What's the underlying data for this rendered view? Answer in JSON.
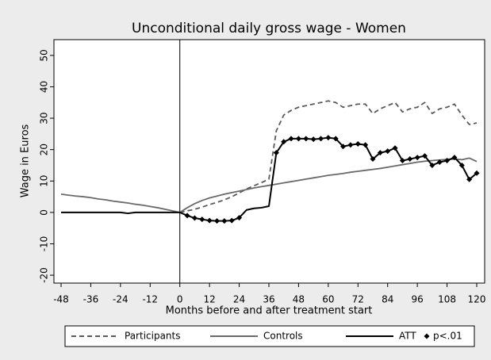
{
  "chart_data": {
    "type": "line",
    "title": "Unconditional daily gross wage - Women",
    "x_label": "Months before and after treatment start",
    "y_label": "Wage in Euros",
    "x": [
      -48,
      -45,
      -42,
      -39,
      -36,
      -33,
      -30,
      -27,
      -24,
      -21,
      -18,
      -15,
      -12,
      -9,
      -6,
      -3,
      0,
      3,
      6,
      9,
      12,
      15,
      18,
      21,
      24,
      27,
      30,
      33,
      36,
      39,
      42,
      45,
      48,
      51,
      54,
      57,
      60,
      63,
      66,
      69,
      72,
      75,
      78,
      81,
      84,
      87,
      90,
      93,
      96,
      99,
      102,
      105,
      108,
      111,
      114,
      117,
      120
    ],
    "xlim": [
      -48,
      120
    ],
    "xticks": [
      -48,
      -36,
      -24,
      -12,
      0,
      12,
      24,
      36,
      48,
      60,
      72,
      84,
      96,
      108,
      120
    ],
    "ylim": [
      -22,
      53
    ],
    "yticks": [
      -20,
      -10,
      0,
      10,
      20,
      30,
      40,
      50
    ],
    "vline": 0,
    "series": [
      {
        "name": "Participants",
        "color": "#5a5a5a",
        "dash": true,
        "values": [
          null,
          null,
          null,
          null,
          null,
          null,
          null,
          null,
          null,
          null,
          null,
          null,
          null,
          null,
          null,
          null,
          0,
          0.5,
          1.0,
          1.7,
          2.5,
          3.2,
          4.0,
          5.0,
          6.2,
          7.5,
          8.5,
          9.5,
          10.6,
          26,
          31,
          32.5,
          33.5,
          34,
          34.5,
          35,
          35.5,
          35,
          33.5,
          34,
          34.5,
          34.5,
          31.5,
          33,
          34,
          35,
          32,
          33,
          33.5,
          35,
          31.5,
          33,
          33.5,
          34.5,
          31,
          28,
          28.5
        ]
      },
      {
        "name": "Controls",
        "color": "#6a6a6a",
        "values": [
          5.8,
          5.5,
          5.2,
          5.0,
          4.7,
          4.3,
          4.0,
          3.6,
          3.3,
          3.0,
          2.6,
          2.3,
          1.9,
          1.5,
          1.0,
          0.5,
          0,
          1.5,
          2.8,
          3.8,
          4.6,
          5.2,
          5.8,
          6.3,
          6.8,
          7.3,
          7.8,
          8.2,
          8.6,
          9.0,
          9.4,
          9.8,
          10.2,
          10.6,
          11.0,
          11.4,
          11.8,
          12.1,
          12.4,
          12.8,
          13.1,
          13.4,
          13.7,
          14.0,
          14.4,
          14.8,
          15.2,
          15.6,
          16.0,
          16.3,
          16.5,
          16.7,
          16.9,
          17.0,
          16.8,
          17.3,
          16.2
        ]
      },
      {
        "name": "ATT",
        "color": "#000000",
        "values": [
          0,
          0,
          0,
          0,
          0,
          0,
          0,
          0,
          0,
          -0.3,
          0,
          0,
          0,
          0,
          0,
          0,
          0,
          -1,
          -1.8,
          -2.2,
          -2.6,
          -2.7,
          -2.7,
          -2.6,
          -1.7,
          0.8,
          1.3,
          1.5,
          2.0,
          19,
          22.5,
          23.5,
          23.5,
          23.5,
          23.3,
          23.5,
          23.8,
          23.5,
          21,
          21.5,
          21.8,
          21.5,
          17,
          19,
          19.5,
          20.5,
          16.5,
          17,
          17.5,
          18,
          15,
          16,
          16.5,
          17.5,
          15,
          10.5,
          12.5
        ]
      },
      {
        "name": "p<.01",
        "color": "#000000",
        "marker": "diamond",
        "x": [
          3,
          6,
          9,
          12,
          15,
          18,
          21,
          24,
          39,
          42,
          45,
          48,
          51,
          54,
          57,
          60,
          63,
          66,
          69,
          72,
          75,
          78,
          81,
          84,
          87,
          90,
          93,
          96,
          99,
          102,
          105,
          108,
          111,
          114,
          117,
          120
        ],
        "values": [
          -1,
          -1.8,
          -2.2,
          -2.6,
          -2.7,
          -2.7,
          -2.6,
          -1.7,
          19,
          22.5,
          23.5,
          23.5,
          23.5,
          23.3,
          23.5,
          23.8,
          23.5,
          21,
          21.5,
          21.8,
          21.5,
          17,
          19,
          19.5,
          20.5,
          16.5,
          17,
          17.5,
          18,
          15,
          16,
          16.5,
          17.5,
          15,
          10.5,
          12.5
        ]
      }
    ]
  }
}
